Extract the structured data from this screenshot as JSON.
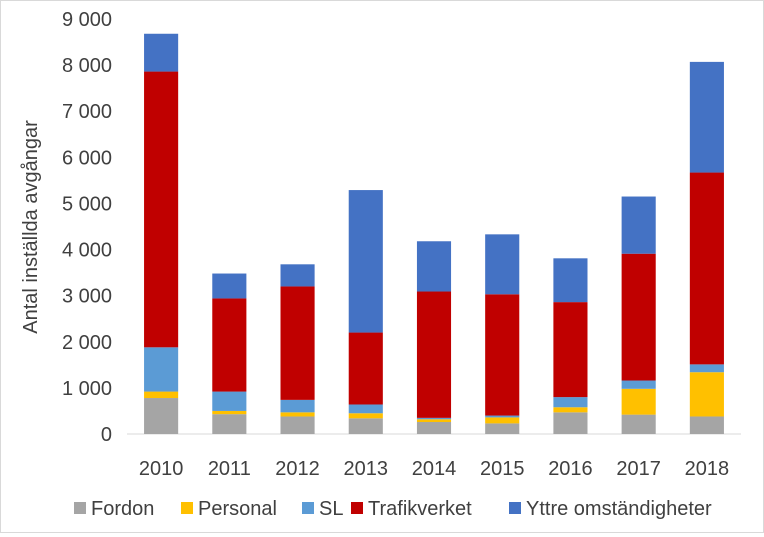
{
  "chart_data": {
    "type": "bar",
    "stacked": true,
    "ylabel": "Antal inställda avgångar",
    "xlabel": "",
    "ylim": [
      0,
      9000
    ],
    "yticks": [
      0,
      1000,
      2000,
      3000,
      4000,
      5000,
      6000,
      7000,
      8000,
      9000
    ],
    "ytick_labels": [
      "0",
      "1 000",
      "2 000",
      "3 000",
      "4 000",
      "5 000",
      "6 000",
      "7 000",
      "8 000",
      "9 000"
    ],
    "grid": false,
    "legend_position": "bottom",
    "categories": [
      "2010",
      "2011",
      "2012",
      "2013",
      "2014",
      "2015",
      "2016",
      "2017",
      "2018"
    ],
    "series": [
      {
        "name": "Fordon",
        "color": "#a5a5a5",
        "values": [
          780,
          430,
          380,
          340,
          260,
          230,
          470,
          420,
          380
        ]
      },
      {
        "name": "Personal",
        "color": "#ffc000",
        "values": [
          140,
          70,
          90,
          110,
          60,
          130,
          110,
          560,
          960
        ]
      },
      {
        "name": "SL",
        "color": "#5b9bd5",
        "values": [
          960,
          420,
          270,
          190,
          30,
          40,
          220,
          180,
          170
        ]
      },
      {
        "name": "Trafikverket",
        "color": "#c00000",
        "values": [
          5980,
          2020,
          2460,
          1560,
          2740,
          2630,
          2060,
          2750,
          4160
        ]
      },
      {
        "name": "Yttre omständigheter",
        "color": "#4472c4",
        "values": [
          820,
          540,
          480,
          3090,
          1090,
          1300,
          950,
          1240,
          2400
        ]
      }
    ]
  }
}
